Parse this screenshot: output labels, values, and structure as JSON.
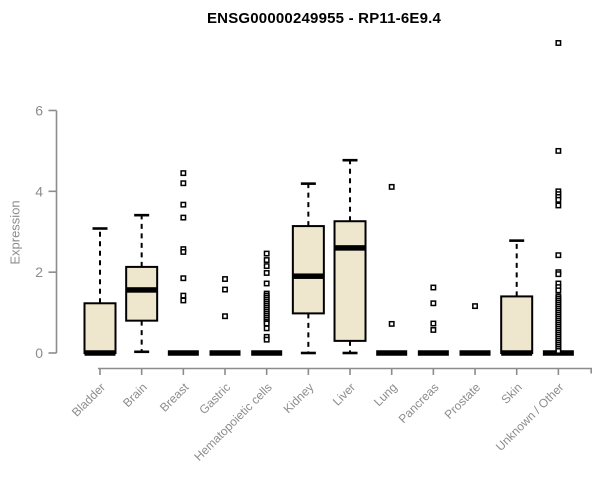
{
  "chart_data": {
    "type": "box",
    "title": "ENSG00000249955 - RP11-6E9.4",
    "ylabel": "Expression",
    "xlabel": "",
    "ylim": [
      0,
      6
    ],
    "yticks": [
      0,
      2,
      4,
      6
    ],
    "grid": false,
    "legend": "none",
    "categories": [
      "Bladder",
      "Brain",
      "Breast",
      "Gastric",
      "Hematopoietic cells",
      "Kidney",
      "Liver",
      "Lung",
      "Pancreas",
      "Prostate",
      "Skin",
      "Unknown / Other"
    ],
    "series": [
      {
        "category": "Bladder",
        "low": 0,
        "q1": 0,
        "median": 0,
        "q3": 1.23,
        "high": 3.08,
        "outliers": []
      },
      {
        "category": "Brain",
        "low": 0.03,
        "q1": 0.8,
        "median": 1.56,
        "q3": 2.13,
        "high": 3.41,
        "outliers": []
      },
      {
        "category": "Breast",
        "low": 0,
        "q1": 0,
        "median": 0,
        "q3": 0,
        "high": 0,
        "outliers": [
          4.45,
          4.2,
          3.67,
          3.35,
          2.57,
          2.5,
          1.85,
          1.42,
          1.3
        ]
      },
      {
        "category": "Gastric",
        "low": 0,
        "q1": 0,
        "median": 0,
        "q3": 0,
        "high": 0,
        "outliers": [
          1.83,
          1.57,
          0.91
        ]
      },
      {
        "category": "Hematopoietic cells",
        "low": 0,
        "q1": 0,
        "median": 0,
        "q3": 0,
        "high": 0,
        "outliers": [
          2.46,
          2.3,
          2.15,
          1.98,
          1.72,
          1.47,
          1.42,
          1.37,
          1.32,
          1.27,
          1.22,
          1.17,
          1.12,
          1.07,
          1.02,
          0.97,
          0.92,
          0.87,
          0.82,
          0.77,
          0.73,
          0.61,
          0.4,
          0.33
        ]
      },
      {
        "category": "Kidney",
        "low": 0,
        "q1": 0.98,
        "median": 1.9,
        "q3": 3.14,
        "high": 4.19,
        "outliers": []
      },
      {
        "category": "Liver",
        "low": 0,
        "q1": 0.3,
        "median": 2.6,
        "q3": 3.26,
        "high": 4.77,
        "outliers": []
      },
      {
        "category": "Lung",
        "low": 0,
        "q1": 0,
        "median": 0,
        "q3": 0,
        "high": 0,
        "outliers": [
          4.11,
          0.72
        ]
      },
      {
        "category": "Pancreas",
        "low": 0,
        "q1": 0,
        "median": 0,
        "q3": 0,
        "high": 0,
        "outliers": [
          1.62,
          1.23,
          0.73,
          0.57
        ]
      },
      {
        "category": "Prostate",
        "low": 0,
        "q1": 0,
        "median": 0,
        "q3": 0,
        "high": 0,
        "outliers": [
          1.16
        ]
      },
      {
        "category": "Skin",
        "low": 0,
        "q1": 0,
        "median": 0,
        "q3": 1.4,
        "high": 2.78,
        "outliers": []
      },
      {
        "category": "Unknown / Other",
        "low": 0,
        "q1": 0,
        "median": 0,
        "q3": 0,
        "high": 0,
        "outliers": [
          7.67,
          5.0,
          4.0,
          3.93,
          3.86,
          3.79,
          3.65,
          2.42,
          2.0,
          1.95,
          1.72,
          1.63,
          1.55,
          1.4,
          1.35,
          1.3,
          1.25,
          1.2,
          1.15,
          1.1,
          1.05,
          1.0,
          0.95,
          0.9,
          0.85,
          0.8,
          0.75,
          0.7,
          0.65,
          0.6,
          0.55,
          0.5,
          0.45,
          0.4,
          0.35,
          0.3,
          0.25,
          0.2,
          0.15,
          0.1,
          0.05
        ]
      }
    ],
    "colors": {
      "box_fill": "#EEE7CD",
      "box_stroke": "#000000",
      "median": "#000000",
      "whisker": "#000000",
      "outlier_stroke": "#000000",
      "axis": "#8C8C8C",
      "tick_label": "#8C8C8C",
      "title": "#000000",
      "background": "#FFFFFF"
    }
  }
}
